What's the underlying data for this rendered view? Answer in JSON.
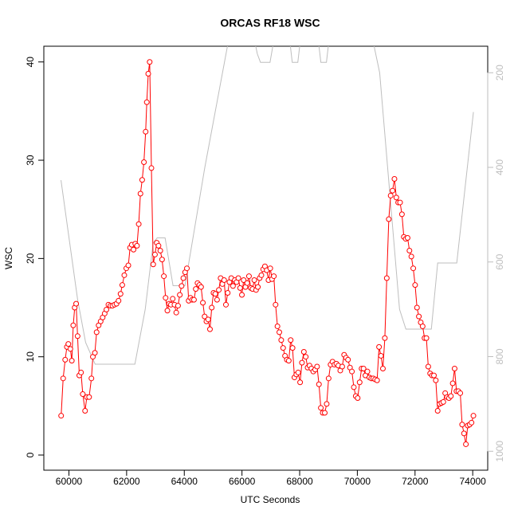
{
  "chart_data": {
    "type": "line",
    "title": "ORCAS RF18 WSC",
    "x_label": "UTC Seconds",
    "y_label": "WSC",
    "xlim": [
      59130,
      74520
    ],
    "xticks": [
      60000,
      62000,
      64000,
      66000,
      68000,
      70000,
      72000,
      74000
    ],
    "ylim": [
      -1.54,
      41.6
    ],
    "yticks": [
      0,
      10,
      20,
      30,
      40
    ],
    "y2lim": [
      1040,
      144
    ],
    "y2ticks": [
      200,
      400,
      600,
      800,
      1000
    ],
    "series": [
      {
        "color": "#ff0000",
        "markers": true,
        "x": [
          59730,
          59800,
          59870,
          59930,
          59980,
          60050,
          60100,
          60150,
          60200,
          60250,
          60300,
          60360,
          60420,
          60480,
          60560,
          60620,
          60700,
          60780,
          60830,
          60900,
          60960,
          61030,
          61100,
          61170,
          61240,
          61300,
          61370,
          61440,
          61510,
          61580,
          61650,
          61720,
          61790,
          61850,
          61920,
          61990,
          62060,
          62120,
          62180,
          62240,
          62300,
          62360,
          62420,
          62480,
          62540,
          62600,
          62660,
          62700,
          62750,
          62800,
          62860,
          62922,
          62983,
          63045,
          63106,
          63168,
          63229,
          63291,
          63352,
          63414,
          63475,
          63537,
          63598,
          63660,
          63721,
          63783,
          63844,
          63906,
          63967,
          64029,
          64090,
          64152,
          64213,
          64275,
          64336,
          64398,
          64459,
          64521,
          64582,
          64644,
          64705,
          64767,
          64828,
          64890,
          64951,
          65013,
          65074,
          65136,
          65197,
          65259,
          65320,
          65382,
          65443,
          65505,
          65566,
          65628,
          65689,
          65751,
          65812,
          65874,
          65935,
          65997,
          66058,
          66120,
          66181,
          66243,
          66304,
          66366,
          66427,
          66489,
          66550,
          66612,
          66673,
          66735,
          66796,
          66858,
          66919,
          66981,
          67042,
          67104,
          67165,
          67230,
          67295,
          67361,
          67426,
          67492,
          67557,
          67622,
          67688,
          67753,
          67819,
          67884,
          67949,
          68015,
          68080,
          68146,
          68211,
          68276,
          68342,
          68407,
          68473,
          68538,
          68603,
          68669,
          68734,
          68800,
          68870,
          68937,
          69004,
          69072,
          69139,
          69206,
          69273,
          69340,
          69408,
          69475,
          69542,
          69609,
          69676,
          69744,
          69811,
          69878,
          69945,
          70012,
          70080,
          70147,
          70214,
          70281,
          70348,
          70416,
          70483,
          70550,
          70617,
          70684,
          70752,
          70819,
          70886,
          70953,
          71020,
          71090,
          71155,
          71220,
          71286,
          71351,
          71416,
          71481,
          71546,
          71612,
          71677,
          71742,
          71807,
          71872,
          71938,
          72003,
          72068,
          72133,
          72198,
          72264,
          72329,
          72394,
          72459,
          72524,
          72590,
          72655,
          72720,
          72785,
          72850,
          72916,
          72981,
          73046,
          73111,
          73176,
          73242,
          73307,
          73372,
          73437,
          73502,
          73568,
          73633,
          73698,
          73763,
          73828,
          73894,
          73959,
          74024
        ],
        "values": [
          4.0,
          7.8,
          9.7,
          11.0,
          11.3,
          10.8,
          9.6,
          13.2,
          15.0,
          15.4,
          12.1,
          8.1,
          8.4,
          6.2,
          4.5,
          5.9,
          5.9,
          7.8,
          10.0,
          10.4,
          12.5,
          13.2,
          13.6,
          14.0,
          14.4,
          14.8,
          15.3,
          15.2,
          15.2,
          15.3,
          15.4,
          15.7,
          16.4,
          17.3,
          18.3,
          19.0,
          19.3,
          21.1,
          21.4,
          20.9,
          21.5,
          21.3,
          23.5,
          26.6,
          28.0,
          29.8,
          32.9,
          35.9,
          38.8,
          40.0,
          29.2,
          19.4,
          20.4,
          21.6,
          21.3,
          20.8,
          19.9,
          18.2,
          16.0,
          14.7,
          15.4,
          15.3,
          15.9,
          15.3,
          14.5,
          15.2,
          16.3,
          17.2,
          18.0,
          18.6,
          19.0,
          15.7,
          16.0,
          15.8,
          15.8,
          16.9,
          17.5,
          17.3,
          17.1,
          15.5,
          14.1,
          13.6,
          13.8,
          12.8,
          15.0,
          16.5,
          16.4,
          15.8,
          16.8,
          18.0,
          17.4,
          17.8,
          15.3,
          16.5,
          17.6,
          18.0,
          17.2,
          17.8,
          17.6,
          18.0,
          17.0,
          16.3,
          17.8,
          17.1,
          17.5,
          18.2,
          17.0,
          16.9,
          17.8,
          16.8,
          17.1,
          18.0,
          18.3,
          18.9,
          19.2,
          18.8,
          17.8,
          19.0,
          17.9,
          18.2,
          15.3,
          13.1,
          12.5,
          11.7,
          10.9,
          10.1,
          9.7,
          9.6,
          11.7,
          10.9,
          7.9,
          8.2,
          8.4,
          7.4,
          9.4,
          10.5,
          10.0,
          8.9,
          9.1,
          8.8,
          8.5,
          8.7,
          9.0,
          7.2,
          4.8,
          4.3,
          4.3,
          5.2,
          7.8,
          9.2,
          9.5,
          9.2,
          9.3,
          9.1,
          8.6,
          9.0,
          10.2,
          9.9,
          9.7,
          8.9,
          8.5,
          6.9,
          6.0,
          5.8,
          7.4,
          8.8,
          8.8,
          8.1,
          8.5,
          7.9,
          7.8,
          7.8,
          7.7,
          7.6,
          11.0,
          10.1,
          8.8,
          11.9,
          18.0,
          24.0,
          26.4,
          26.9,
          28.1,
          26.2,
          25.7,
          25.7,
          24.5,
          22.2,
          22.0,
          22.1,
          20.8,
          20.2,
          19.0,
          17.3,
          15.0,
          14.1,
          13.5,
          13.1,
          11.9,
          11.9,
          9.0,
          8.3,
          8.1,
          8.1,
          7.6,
          4.5,
          5.2,
          5.3,
          5.4,
          6.3,
          5.9,
          5.8,
          6.0,
          7.3,
          8.8,
          6.5,
          6.5,
          6.3,
          3.1,
          2.2,
          1.1,
          3.0,
          3.1,
          3.3,
          4.0
        ]
      },
      {
        "color": "#bebebe",
        "axis": "y2",
        "markers": false,
        "x": [
          59725,
          60028,
          60303,
          60579,
          60909,
          62287,
          62645,
          62921,
          63059,
          63334,
          63610,
          64023,
          64712,
          65539,
          66365,
          66531,
          66641,
          66972,
          67137,
          67633,
          67743,
          67936,
          68046,
          68624,
          68735,
          68928,
          69038,
          70498,
          70774,
          71187,
          71463,
          71683,
          72565,
          72785,
          73447,
          74025
        ],
        "values": [
          427,
          560,
          680,
          770,
          816,
          816,
          700,
          560,
          549,
          549,
          650,
          650,
          400,
          130,
          110,
          160,
          178,
          178,
          120,
          120,
          178,
          178,
          120,
          120,
          178,
          178,
          120,
          120,
          200,
          500,
          700,
          742,
          742,
          602,
          602,
          283
        ]
      }
    ]
  }
}
